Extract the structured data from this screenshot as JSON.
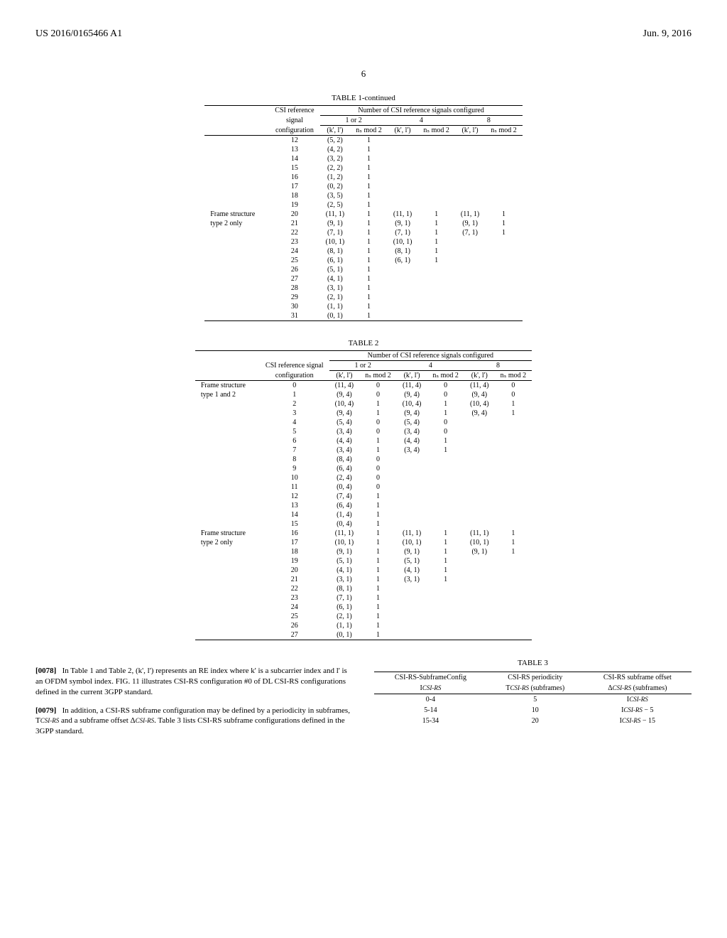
{
  "header": {
    "left": "US 2016/0165466 A1",
    "right": "Jun. 9, 2016"
  },
  "page_number": "6",
  "table1": {
    "title": "TABLE 1-continued",
    "spanner": "Number of CSI reference signals configured",
    "col_group_labels": [
      "1 or 2",
      "4",
      "8"
    ],
    "sub_headers_left": [
      "CSI reference",
      "signal",
      "configuration"
    ],
    "pair_headers": [
      "(k', l')",
      "nₛ mod 2"
    ],
    "row_groups": [
      {
        "label": "",
        "rows": [
          {
            "cfg": "12",
            "a": "(5, 2)",
            "b": "1"
          },
          {
            "cfg": "13",
            "a": "(4, 2)",
            "b": "1"
          },
          {
            "cfg": "14",
            "a": "(3, 2)",
            "b": "1"
          },
          {
            "cfg": "15",
            "a": "(2, 2)",
            "b": "1"
          },
          {
            "cfg": "16",
            "a": "(1, 2)",
            "b": "1"
          },
          {
            "cfg": "17",
            "a": "(0, 2)",
            "b": "1"
          },
          {
            "cfg": "18",
            "a": "(3, 5)",
            "b": "1"
          },
          {
            "cfg": "19",
            "a": "(2, 5)",
            "b": "1"
          }
        ]
      },
      {
        "label": "Frame structure type 2 only",
        "rows": [
          {
            "cfg": "20",
            "a": "(11, 1)",
            "b": "1",
            "c": "(11, 1)",
            "d": "1",
            "e": "(11, 1)",
            "f": "1"
          },
          {
            "cfg": "21",
            "a": "(9, 1)",
            "b": "1",
            "c": "(9, 1)",
            "d": "1",
            "e": "(9, 1)",
            "f": "1"
          },
          {
            "cfg": "22",
            "a": "(7, 1)",
            "b": "1",
            "c": "(7, 1)",
            "d": "1",
            "e": "(7, 1)",
            "f": "1"
          },
          {
            "cfg": "23",
            "a": "(10, 1)",
            "b": "1",
            "c": "(10, 1)",
            "d": "1"
          },
          {
            "cfg": "24",
            "a": "(8, 1)",
            "b": "1",
            "c": "(8, 1)",
            "d": "1"
          },
          {
            "cfg": "25",
            "a": "(6, 1)",
            "b": "1",
            "c": "(6, 1)",
            "d": "1"
          },
          {
            "cfg": "26",
            "a": "(5, 1)",
            "b": "1"
          },
          {
            "cfg": "27",
            "a": "(4, 1)",
            "b": "1"
          },
          {
            "cfg": "28",
            "a": "(3, 1)",
            "b": "1"
          },
          {
            "cfg": "29",
            "a": "(2, 1)",
            "b": "1"
          },
          {
            "cfg": "30",
            "a": "(1, 1)",
            "b": "1"
          },
          {
            "cfg": "31",
            "a": "(0, 1)",
            "b": "1"
          }
        ]
      }
    ]
  },
  "table2": {
    "title": "TABLE 2",
    "spanner": "Number of CSI reference signals configured",
    "col_group_labels": [
      "1 or 2",
      "4",
      "8"
    ],
    "sub_headers_left": [
      "CSI reference signal",
      "configuration"
    ],
    "pair_headers": [
      "(k', l')",
      "nₛ mod 2"
    ],
    "row_groups": [
      {
        "label": "Frame structure type 1 and 2",
        "rows": [
          {
            "cfg": "0",
            "a": "(11, 4)",
            "b": "0",
            "c": "(11, 4)",
            "d": "0",
            "e": "(11, 4)",
            "f": "0"
          },
          {
            "cfg": "1",
            "a": "(9, 4)",
            "b": "0",
            "c": "(9, 4)",
            "d": "0",
            "e": "(9, 4)",
            "f": "0"
          },
          {
            "cfg": "2",
            "a": "(10, 4)",
            "b": "1",
            "c": "(10, 4)",
            "d": "1",
            "e": "(10, 4)",
            "f": "1"
          },
          {
            "cfg": "3",
            "a": "(9, 4)",
            "b": "1",
            "c": "(9, 4)",
            "d": "1",
            "e": "(9, 4)",
            "f": "1"
          },
          {
            "cfg": "4",
            "a": "(5, 4)",
            "b": "0",
            "c": "(5, 4)",
            "d": "0"
          },
          {
            "cfg": "5",
            "a": "(3, 4)",
            "b": "0",
            "c": "(3, 4)",
            "d": "0"
          },
          {
            "cfg": "6",
            "a": "(4, 4)",
            "b": "1",
            "c": "(4, 4)",
            "d": "1"
          },
          {
            "cfg": "7",
            "a": "(3, 4)",
            "b": "1",
            "c": "(3, 4)",
            "d": "1"
          },
          {
            "cfg": "8",
            "a": "(8, 4)",
            "b": "0"
          },
          {
            "cfg": "9",
            "a": "(6, 4)",
            "b": "0"
          },
          {
            "cfg": "10",
            "a": "(2, 4)",
            "b": "0"
          },
          {
            "cfg": "11",
            "a": "(0, 4)",
            "b": "0"
          },
          {
            "cfg": "12",
            "a": "(7, 4)",
            "b": "1"
          },
          {
            "cfg": "13",
            "a": "(6, 4)",
            "b": "1"
          },
          {
            "cfg": "14",
            "a": "(1, 4)",
            "b": "1"
          },
          {
            "cfg": "15",
            "a": "(0, 4)",
            "b": "1"
          }
        ]
      },
      {
        "label": "Frame structure type 2 only",
        "rows": [
          {
            "cfg": "16",
            "a": "(11, 1)",
            "b": "1",
            "c": "(11, 1)",
            "d": "1",
            "e": "(11, 1)",
            "f": "1"
          },
          {
            "cfg": "17",
            "a": "(10, 1)",
            "b": "1",
            "c": "(10, 1)",
            "d": "1",
            "e": "(10, 1)",
            "f": "1"
          },
          {
            "cfg": "18",
            "a": "(9, 1)",
            "b": "1",
            "c": "(9, 1)",
            "d": "1",
            "e": "(9, 1)",
            "f": "1"
          },
          {
            "cfg": "19",
            "a": "(5, 1)",
            "b": "1",
            "c": "(5, 1)",
            "d": "1"
          },
          {
            "cfg": "20",
            "a": "(4, 1)",
            "b": "1",
            "c": "(4, 1)",
            "d": "1"
          },
          {
            "cfg": "21",
            "a": "(3, 1)",
            "b": "1",
            "c": "(3, 1)",
            "d": "1"
          },
          {
            "cfg": "22",
            "a": "(8, 1)",
            "b": "1"
          },
          {
            "cfg": "23",
            "a": "(7, 1)",
            "b": "1"
          },
          {
            "cfg": "24",
            "a": "(6, 1)",
            "b": "1"
          },
          {
            "cfg": "25",
            "a": "(2, 1)",
            "b": "1"
          },
          {
            "cfg": "26",
            "a": "(1, 1)",
            "b": "1"
          },
          {
            "cfg": "27",
            "a": "(0, 1)",
            "b": "1"
          }
        ]
      }
    ]
  },
  "paragraphs": {
    "p78_num": "[0078]",
    "p78": "In Table 1 and Table 2, (k', l') represents an RE index where k' is a subcarrier index and l' is an OFDM symbol index. FIG. 11 illustrates CSI-RS configuration #0 of DL CSI-RS configurations defined in the current 3GPP standard.",
    "p79_num": "[0079]",
    "p79": "In addition, a CSI-RS subframe configuration may be defined by a periodicity in subframes, T",
    "p79_sub1": "CSI-RS",
    "p79_mid": " and a subframe offset Δ",
    "p79_sub2": "CSI-RS",
    "p79_end": ". Table 3 lists CSI-RS subframe configurations defined in the 3GPP standard."
  },
  "table3": {
    "title": "TABLE 3",
    "headers": {
      "c1a": "CSI-RS-SubframeConfig",
      "c1b": "I",
      "c1b_sub": "CSI-RS",
      "c2a": "CSI-RS periodicity",
      "c2b": "T",
      "c2b_sub": "CSI-RS",
      "c2b_tail": " (subframes)",
      "c3a": "CSI-RS subframe offset",
      "c3b": "Δ",
      "c3b_sub": "CSI-RS",
      "c3b_tail": " (subframes)"
    },
    "rows": [
      {
        "r": "0-4",
        "p": "5",
        "o": "I",
        "o_sub": "CSI-RS",
        "o_tail": ""
      },
      {
        "r": "5-14",
        "p": "10",
        "o": "I",
        "o_sub": "CSI-RS",
        "o_tail": " − 5"
      },
      {
        "r": "15-34",
        "p": "20",
        "o": "I",
        "o_sub": "CSI-RS",
        "o_tail": " − 15"
      }
    ]
  }
}
